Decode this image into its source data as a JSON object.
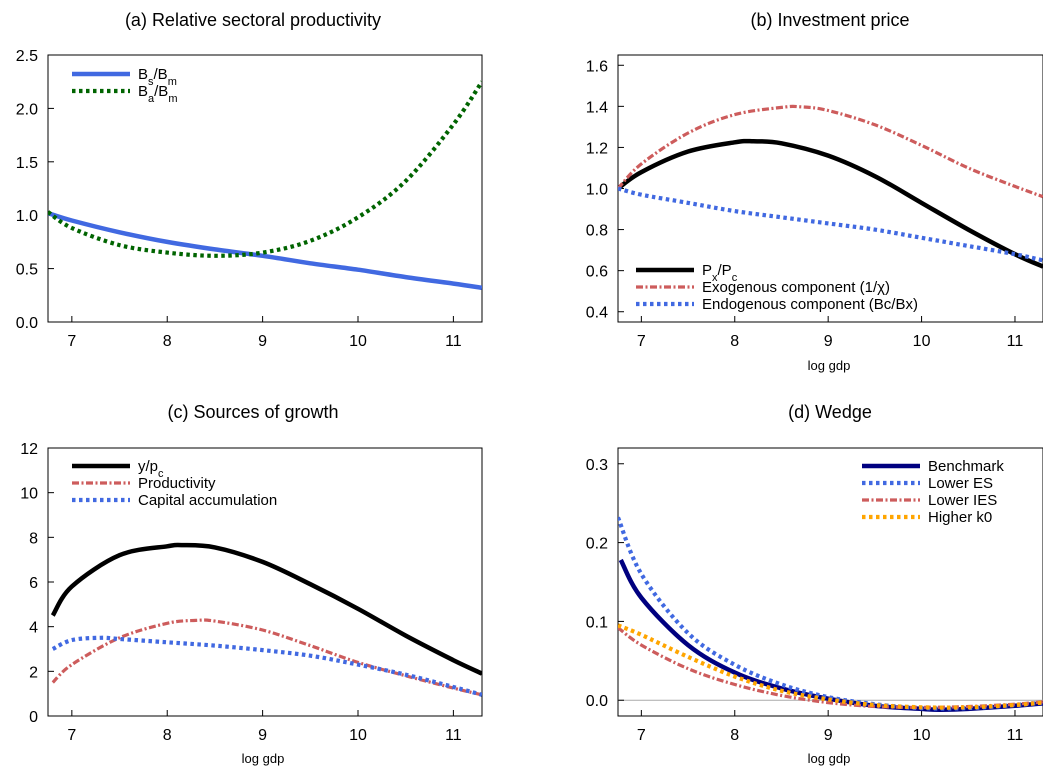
{
  "figure": {
    "colors": {
      "blue": "#4169e1",
      "green": "#006400",
      "red": "#cd5c5c",
      "black": "#000000",
      "navy": "#000080",
      "orange": "#ffa500",
      "zero": "#aaaaaa"
    }
  },
  "chart_data": [
    {
      "type": "line",
      "title": "(a) Relative sectoral productivity",
      "xlabel": "",
      "ylabel": "",
      "xlim": [
        6.75,
        11.3
      ],
      "ylim": [
        0.0,
        2.5
      ],
      "xticks": [
        "7",
        "8",
        "9",
        "10",
        "11"
      ],
      "yticks": [
        "0.0",
        "0.5",
        "1.0",
        "1.5",
        "2.0",
        "2.5"
      ],
      "legend_position": "top-left",
      "series": [
        {
          "name": "Bs/Bm",
          "legend": {
            "main": "B",
            "sub1": "s",
            "mid": "/B",
            "sub2": "m"
          },
          "color": "#4169e1",
          "style": "solid",
          "x": [
            6.75,
            7,
            7.5,
            8,
            8.5,
            9,
            9.5,
            10,
            10.5,
            11,
            11.3
          ],
          "y": [
            1.02,
            0.95,
            0.84,
            0.75,
            0.68,
            0.62,
            0.55,
            0.49,
            0.42,
            0.36,
            0.32
          ]
        },
        {
          "name": "Ba/Bm",
          "legend": {
            "main": "B",
            "sub1": "a",
            "mid": "/B",
            "sub2": "m"
          },
          "color": "#006400",
          "style": "dotted",
          "x": [
            6.75,
            7,
            7.5,
            8,
            8.5,
            9,
            9.5,
            10,
            10.5,
            11,
            11.3
          ],
          "y": [
            1.03,
            0.88,
            0.72,
            0.65,
            0.62,
            0.65,
            0.76,
            0.98,
            1.32,
            1.85,
            2.25
          ]
        }
      ]
    },
    {
      "type": "line",
      "title": "(b) Investment price",
      "xlabel": "log gdp",
      "ylabel": "",
      "xlim": [
        6.75,
        11.3
      ],
      "ylim": [
        0.35,
        1.65
      ],
      "xticks": [
        "7",
        "8",
        "9",
        "10",
        "11"
      ],
      "yticks": [
        "0.4",
        "0.6",
        "0.8",
        "1.0",
        "1.2",
        "1.4",
        "1.6"
      ],
      "legend_position": "bottom-left",
      "series": [
        {
          "name": "Px/Pc",
          "legend": {
            "main": "P",
            "sub1": "x",
            "mid": "/P",
            "sub2": "c"
          },
          "color": "#000000",
          "style": "solid",
          "x": [
            6.75,
            7,
            7.5,
            8,
            8.2,
            8.5,
            9,
            9.5,
            10,
            10.5,
            11,
            11.3
          ],
          "y": [
            1.0,
            1.08,
            1.18,
            1.225,
            1.23,
            1.22,
            1.16,
            1.06,
            0.93,
            0.8,
            0.68,
            0.62
          ]
        },
        {
          "name": "Exogenous component (1/χ)",
          "color": "#cd5c5c",
          "style": "dashdot",
          "x": [
            6.75,
            7,
            7.5,
            8,
            8.5,
            8.7,
            9,
            9.5,
            10,
            10.5,
            11,
            11.3
          ],
          "y": [
            1.0,
            1.12,
            1.27,
            1.36,
            1.395,
            1.398,
            1.38,
            1.31,
            1.21,
            1.1,
            1.01,
            0.96
          ]
        },
        {
          "name": "Endogenous component (Bc/Bx)",
          "color": "#4169e1",
          "style": "dotted",
          "x": [
            6.75,
            7,
            7.5,
            8,
            8.5,
            9,
            9.5,
            10,
            10.5,
            11,
            11.3
          ],
          "y": [
            1.0,
            0.97,
            0.93,
            0.89,
            0.86,
            0.83,
            0.8,
            0.76,
            0.72,
            0.68,
            0.65
          ]
        }
      ]
    },
    {
      "type": "line",
      "title": "(c) Sources of growth",
      "xlabel": "log gdp",
      "ylabel": "",
      "xlim": [
        6.75,
        11.3
      ],
      "ylim": [
        0,
        12
      ],
      "xticks": [
        "7",
        "8",
        "9",
        "10",
        "11"
      ],
      "yticks": [
        "0",
        "2",
        "4",
        "6",
        "8",
        "10",
        "12"
      ],
      "legend_position": "top-left",
      "series": [
        {
          "name": "y/pc",
          "legend": {
            "main": "y/p",
            "sub1": "c"
          },
          "color": "#000000",
          "style": "solid",
          "x": [
            6.8,
            7,
            7.5,
            8,
            8.15,
            8.5,
            9,
            9.5,
            10,
            10.5,
            11,
            11.3
          ],
          "y": [
            4.5,
            5.8,
            7.2,
            7.6,
            7.65,
            7.55,
            6.9,
            5.9,
            4.8,
            3.6,
            2.5,
            1.9
          ]
        },
        {
          "name": "Productivity",
          "color": "#cd5c5c",
          "style": "dashdot",
          "x": [
            6.8,
            7,
            7.5,
            8,
            8.3,
            8.5,
            9,
            9.5,
            10,
            10.5,
            11,
            11.3
          ],
          "y": [
            1.5,
            2.3,
            3.5,
            4.15,
            4.28,
            4.25,
            3.85,
            3.15,
            2.4,
            1.8,
            1.25,
            0.95
          ]
        },
        {
          "name": "Capital accumulation",
          "color": "#4169e1",
          "style": "dotted",
          "x": [
            6.8,
            7,
            7.3,
            7.5,
            8,
            8.5,
            9,
            9.5,
            10,
            10.5,
            11,
            11.3
          ],
          "y": [
            3.0,
            3.4,
            3.5,
            3.45,
            3.3,
            3.15,
            2.95,
            2.7,
            2.3,
            1.85,
            1.3,
            0.95
          ]
        }
      ]
    },
    {
      "type": "line",
      "title": "(d) Wedge",
      "xlabel": "log gdp",
      "ylabel": "",
      "xlim": [
        6.75,
        11.3
      ],
      "ylim": [
        -0.02,
        0.32
      ],
      "xticks": [
        "7",
        "8",
        "9",
        "10",
        "11"
      ],
      "yticks": [
        "0.0",
        "0.1",
        "0.2",
        "0.3"
      ],
      "zero_line": true,
      "legend_position": "top-right",
      "series": [
        {
          "name": "Benchmark",
          "color": "#000080",
          "style": "solid",
          "x": [
            6.78,
            7,
            7.5,
            8,
            8.5,
            9,
            9.5,
            10,
            10.2,
            10.5,
            11,
            11.3
          ],
          "y": [
            0.178,
            0.13,
            0.07,
            0.035,
            0.015,
            0.002,
            -0.007,
            -0.011,
            -0.012,
            -0.011,
            -0.007,
            -0.004
          ]
        },
        {
          "name": "Lower ES",
          "color": "#4169e1",
          "style": "dotted",
          "x": [
            6.75,
            7,
            7.5,
            8,
            8.5,
            9,
            9.5,
            10,
            10.5,
            11,
            11.3
          ],
          "y": [
            0.232,
            0.16,
            0.085,
            0.045,
            0.02,
            0.004,
            -0.005,
            -0.01,
            -0.01,
            -0.006,
            -0.003
          ]
        },
        {
          "name": "Lower IES",
          "color": "#cd5c5c",
          "style": "dashdot",
          "x": [
            6.75,
            7,
            7.5,
            8,
            8.5,
            9,
            9.5,
            10,
            10.5,
            11,
            11.3
          ],
          "y": [
            0.092,
            0.07,
            0.04,
            0.02,
            0.006,
            -0.003,
            -0.008,
            -0.009,
            -0.008,
            -0.005,
            -0.002
          ]
        },
        {
          "name": "Higher k0",
          "color": "#ffa500",
          "style": "dotted",
          "x": [
            6.75,
            7,
            7.5,
            8,
            8.5,
            9,
            9.5,
            10,
            10.5,
            11,
            11.3
          ],
          "y": [
            0.095,
            0.083,
            0.055,
            0.03,
            0.012,
            0.001,
            -0.006,
            -0.009,
            -0.009,
            -0.006,
            -0.003
          ]
        }
      ]
    }
  ]
}
